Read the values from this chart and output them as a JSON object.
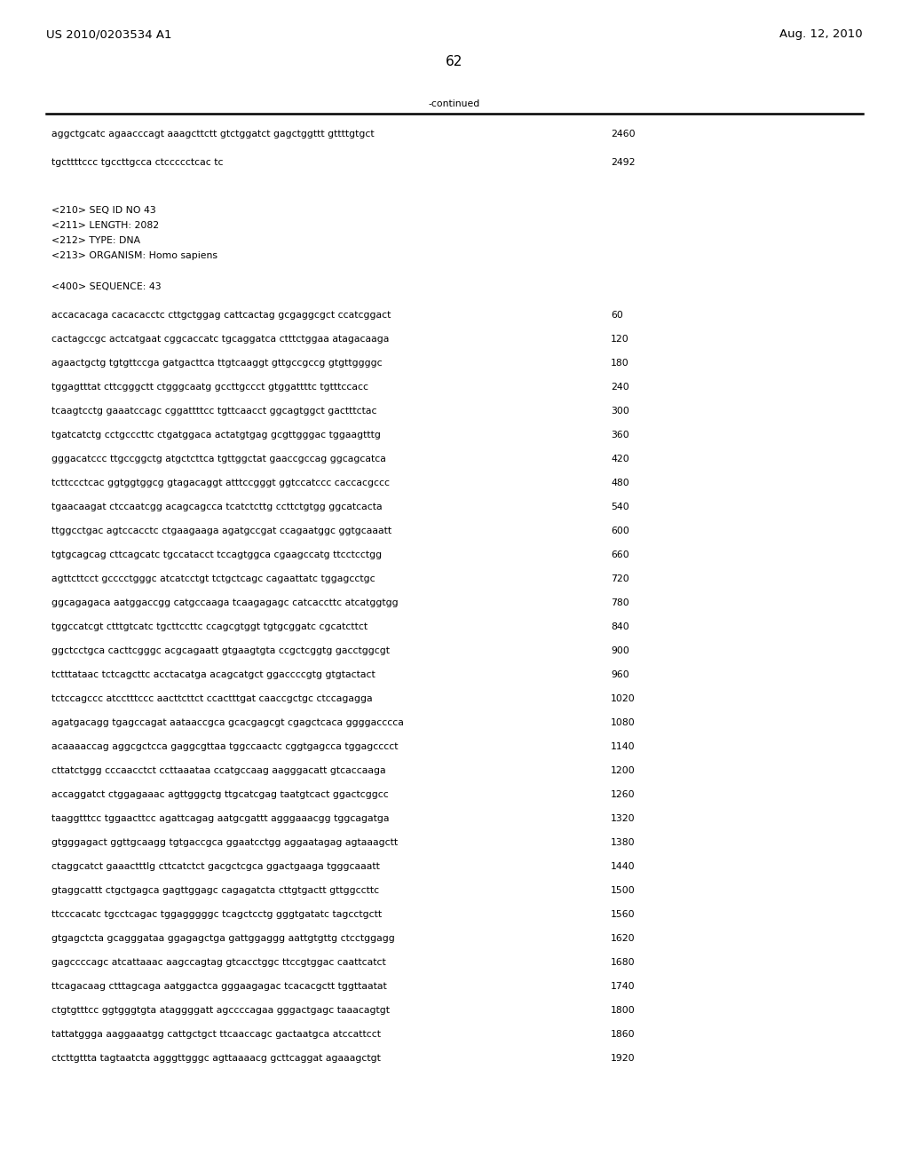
{
  "header_left": "US 2010/0203534 A1",
  "header_right": "Aug. 12, 2010",
  "page_number": "62",
  "continued_label": "-continued",
  "background_color": "#ffffff",
  "text_color": "#000000",
  "font_size_header": 9.5,
  "font_size_body": 7.8,
  "font_size_page": 11,
  "continued_lines": [
    [
      "aggctgcatc agaacccagt aaagcttctt gtctggatct gagctggttt gttttgtgct",
      "2460"
    ],
    [
      "tgcttttccc tgccttgcca ctccccctcac tc",
      "2492"
    ]
  ],
  "metadata_lines": [
    "<210> SEQ ID NO 43",
    "<211> LENGTH: 2082",
    "<212> TYPE: DNA",
    "<213> ORGANISM: Homo sapiens"
  ],
  "sequence_label": "<400> SEQUENCE: 43",
  "sequence_lines": [
    [
      "accacacaga cacacacctc cttgctggag cattcactag gcgaggcgct ccatcggact",
      "60"
    ],
    [
      "cactagccgc actcatgaat cggcaccatc tgcaggatca ctttctggaa atagacaaga",
      "120"
    ],
    [
      "agaactgctg tgtgttccga gatgacttca ttgtcaaggt gttgccgccg gtgttggggc",
      "180"
    ],
    [
      "tggagtttat cttcgggctt ctgggcaatg gccttgccct gtggattttc tgtttccacc",
      "240"
    ],
    [
      "tcaagtcctg gaaatccagc cggattttcc tgttcaacct ggcagtggct gactttctac",
      "300"
    ],
    [
      "tgatcatctg cctgcccttc ctgatggaca actatgtgag gcgttgggac tggaagtttg",
      "360"
    ],
    [
      "gggacatccc ttgccggctg atgctcttca tgttggctat gaaccgccag ggcagcatca",
      "420"
    ],
    [
      "tcttccctcac ggtggtggcg gtagacaggt atttccgggt ggtccatccc caccacgccc",
      "480"
    ],
    [
      "tgaacaagat ctccaatcgg acagcagcca tcatctcttg ccttctgtgg ggcatcacta",
      "540"
    ],
    [
      "ttggcctgac agtccacctc ctgaagaaga agatgccgat ccagaatggc ggtgcaaatt",
      "600"
    ],
    [
      "tgtgcagcag cttcagcatc tgccatacct tccagtggca cgaagccatg ttcctcctgg",
      "660"
    ],
    [
      "agttcttcct gcccctgggc atcatcctgt tctgctcagc cagaattatc tggagcctgc",
      "720"
    ],
    [
      "ggcagagaca aatggaccgg catgccaaga tcaagagagc catcaccttc atcatggtgg",
      "780"
    ],
    [
      "tggccatcgt ctttgtcatc tgcttccttc ccagcgtggt tgtgcggatc cgcatcttct",
      "840"
    ],
    [
      "ggctcctgca cacttcgggc acgcagaatt gtgaagtgta ccgctcggtg gacctggcgt",
      "900"
    ],
    [
      "tctttataac tctcagcttc acctacatga acagcatgct ggaccccgtg gtgtactact",
      "960"
    ],
    [
      "tctccagccc atcctttccc aacttcttct ccactttgat caaccgctgc ctccagagga",
      "1020"
    ],
    [
      "agatgacagg tgagccagat aataaccgca gcacgagcgt cgagctcaca ggggacccca",
      "1080"
    ],
    [
      "acaaaaccag aggcgctcca gaggcgttaa tggccaactc cggtgagcca tggagcccct",
      "1140"
    ],
    [
      "cttatctggg cccaacctct ccttaaataa ccatgccaag aagggacatt gtcaccaaga",
      "1200"
    ],
    [
      "accaggatct ctggagaaac agttgggctg ttgcatcgag taatgtcact ggactcggcc",
      "1260"
    ],
    [
      "taaggtttcc tggaacttcc agattcagag aatgcgattt agggaaacgg tggcagatga",
      "1320"
    ],
    [
      "gtgggagact ggttgcaagg tgtgaccgca ggaatcctgg aggaatagag agtaaagctt",
      "1380"
    ],
    [
      "ctaggcatct gaaactttlg cttcatctct gacgctcgca ggactgaaga tgggcaaatt",
      "1440"
    ],
    [
      "gtaggcattt ctgctgagca gagttggagc cagagatcta cttgtgactt gttggccttc",
      "1500"
    ],
    [
      "ttcccacatc tgcctcagac tggagggggc tcagctcctg gggtgatatc tagcctgctt",
      "1560"
    ],
    [
      "gtgagctcta gcagggataa ggagagctga gattggaggg aattgtgttg ctcctggagg",
      "1620"
    ],
    [
      "gagccccagc atcattaaac aagccagtag gtcacctggc ttccgtggac caattcatct",
      "1680"
    ],
    [
      "ttcagacaag ctttagcaga aatggactca gggaagagac tcacacgctt tggttaatat",
      "1740"
    ],
    [
      "ctgtgtttcc ggtgggtgta ataggggatt agccccagaa gggactgagc taaacagtgt",
      "1800"
    ],
    [
      "tattatggga aaggaaatgg cattgctgct ttcaaccagc gactaatgca atccattcct",
      "1860"
    ],
    [
      "ctcttgttta tagtaatcta agggttgggc agttaaaacg gcttcaggat agaaagctgt",
      "1920"
    ]
  ]
}
